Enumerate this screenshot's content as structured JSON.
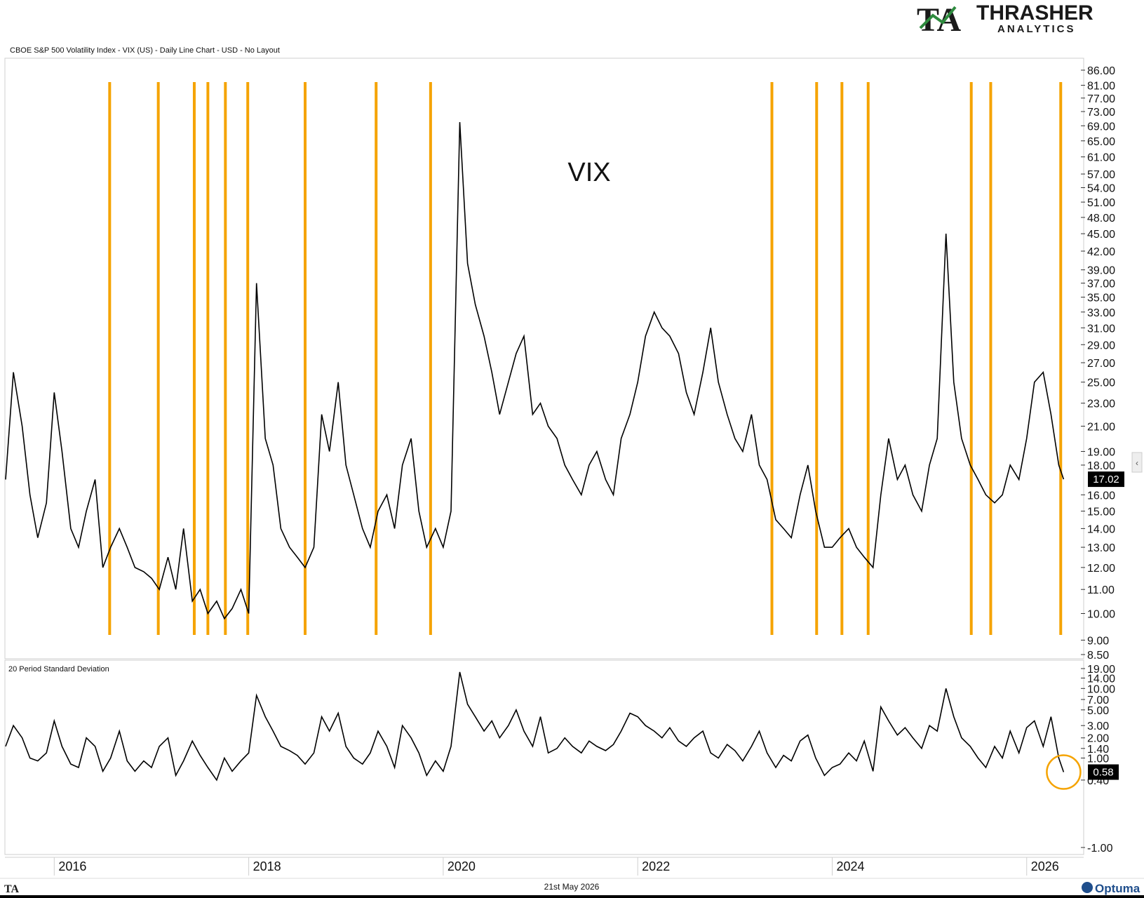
{
  "header": {
    "chart_description": "CBOE S&P 500 Volatility Index - VIX (US) - Daily Line Chart - USD - No Layout",
    "logo_text": "THRASHER",
    "logo_sub": "ANALYTICS",
    "logo_mark": "TA"
  },
  "footer": {
    "date": "21st May 2026",
    "brand": "Optuma",
    "mark": "TA"
  },
  "colors": {
    "line": "#000000",
    "highlight": "#F5A300",
    "logo_green": "#2E8B3E",
    "logo_dark": "#1a1a1a",
    "label_bg": "#000000"
  },
  "chart_data": [
    {
      "type": "line",
      "title": "VIX",
      "scale": "log",
      "series": [
        {
          "x": [
            2015.5,
            2015.58,
            2015.67,
            2015.75,
            2015.83,
            2015.92,
            2016.0,
            2016.08,
            2016.17,
            2016.25,
            2016.33,
            2016.42,
            2016.5,
            2016.58,
            2016.67,
            2016.75,
            2016.83,
            2016.92,
            2017.0,
            2017.08,
            2017.17,
            2017.25,
            2017.33,
            2017.42,
            2017.5,
            2017.58,
            2017.67,
            2017.75,
            2017.83,
            2017.92,
            2018.0,
            2018.08,
            2018.17,
            2018.25,
            2018.33,
            2018.42,
            2018.5,
            2018.58,
            2018.67,
            2018.75,
            2018.83,
            2018.92,
            2019.0,
            2019.08,
            2019.17,
            2019.25,
            2019.33,
            2019.42,
            2019.5,
            2019.58,
            2019.67,
            2019.75,
            2019.83,
            2019.92,
            2020.0,
            2020.08,
            2020.17,
            2020.25,
            2020.33,
            2020.42,
            2020.5,
            2020.58,
            2020.67,
            2020.75,
            2020.83,
            2020.92,
            2021.0,
            2021.08,
            2021.17,
            2021.25,
            2021.33,
            2021.42,
            2021.5,
            2021.58,
            2021.67,
            2021.75,
            2021.83,
            2021.92,
            2022.0,
            2022.08,
            2022.17,
            2022.25,
            2022.33,
            2022.42,
            2022.5,
            2022.58,
            2022.67,
            2022.75,
            2022.83,
            2022.92,
            2023.0,
            2023.08,
            2023.17,
            2023.25,
            2023.33,
            2023.42,
            2023.5,
            2023.58,
            2023.67,
            2023.75,
            2023.83,
            2023.92,
            2024.0,
            2024.08,
            2024.17,
            2024.25,
            2024.33,
            2024.42,
            2024.5,
            2024.58,
            2024.67,
            2024.75,
            2024.83,
            2024.92,
            2025.0,
            2025.08,
            2025.17,
            2025.25,
            2025.33,
            2025.42,
            2025.5,
            2025.58,
            2025.67,
            2025.75,
            2025.83,
            2025.92,
            2026.0,
            2026.08,
            2026.17,
            2026.25,
            2026.33,
            2026.38
          ],
          "y": [
            17,
            26,
            21,
            16,
            13.5,
            15.5,
            24,
            19,
            14,
            13,
            15,
            17,
            12,
            13,
            14,
            13,
            12,
            11.8,
            11.5,
            11,
            12.5,
            11,
            14,
            10.5,
            11,
            10,
            10.5,
            9.8,
            10.2,
            11,
            10,
            37,
            20,
            18,
            14,
            13,
            12.5,
            12,
            13,
            22,
            19,
            25,
            18,
            16,
            14,
            13,
            15,
            16,
            14,
            18,
            20,
            15,
            13,
            14,
            13,
            15,
            70,
            40,
            34,
            30,
            26,
            22,
            25,
            28,
            30,
            22,
            23,
            21,
            20,
            18,
            17,
            16,
            18,
            19,
            17,
            16,
            20,
            22,
            25,
            30,
            33,
            31,
            30,
            28,
            24,
            22,
            26,
            31,
            25,
            22,
            20,
            19,
            22,
            18,
            17,
            14.5,
            14,
            13.5,
            16,
            18,
            15,
            13,
            13,
            13.5,
            14,
            13,
            12.5,
            12,
            16,
            20,
            17,
            18,
            16,
            15,
            18,
            20,
            45,
            25,
            20,
            18,
            17,
            16,
            15.5,
            16,
            18,
            17,
            20,
            25,
            26,
            22,
            18,
            17.02
          ]
        }
      ],
      "highlight_x": [
        2016.57,
        2017.07,
        2017.44,
        2017.58,
        2017.76,
        2017.99,
        2018.58,
        2019.31,
        2019.87,
        2023.38,
        2023.84,
        2024.1,
        2024.37,
        2025.43,
        2025.63,
        2026.35
      ],
      "y_ticks": [
        86.0,
        81.0,
        77.0,
        73.0,
        69.0,
        65.0,
        61.0,
        57.0,
        54.0,
        51.0,
        48.0,
        45.0,
        42.0,
        39.0,
        37.0,
        35.0,
        33.0,
        31.0,
        29.0,
        27.0,
        25.0,
        23.0,
        21.0,
        19.0,
        18.0,
        16.0,
        15.0,
        14.0,
        13.0,
        12.0,
        11.0,
        10.0,
        9.0,
        8.5
      ],
      "y_tick_labels": [
        "86.00",
        "81.00",
        "77.00",
        "73.00",
        "69.00",
        "65.00",
        "61.00",
        "57.00",
        "54.00",
        "51.00",
        "48.00",
        "45.00",
        "42.00",
        "39.00",
        "37.00",
        "35.00",
        "33.00",
        "31.00",
        "29.00",
        "27.00",
        "25.00",
        "23.00",
        "21.00",
        "19.00",
        "18.00",
        "16.00",
        "15.00",
        "14.00",
        "13.00",
        "12.00",
        "11.00",
        "10.00",
        "9.00",
        "8.50"
      ],
      "last_value": "17.02",
      "ylim": [
        8.5,
        86
      ],
      "xlim": [
        2015.5,
        2026.55
      ]
    },
    {
      "type": "line",
      "title": "20 Period Standard Deviation",
      "series": [
        {
          "x": [
            2015.5,
            2015.58,
            2015.67,
            2015.75,
            2015.83,
            2015.92,
            2016.0,
            2016.08,
            2016.17,
            2016.25,
            2016.33,
            2016.42,
            2016.5,
            2016.58,
            2016.67,
            2016.75,
            2016.83,
            2016.92,
            2017.0,
            2017.08,
            2017.17,
            2017.25,
            2017.33,
            2017.42,
            2017.5,
            2017.58,
            2017.67,
            2017.75,
            2017.83,
            2017.92,
            2018.0,
            2018.08,
            2018.17,
            2018.25,
            2018.33,
            2018.42,
            2018.5,
            2018.58,
            2018.67,
            2018.75,
            2018.83,
            2018.92,
            2019.0,
            2019.08,
            2019.17,
            2019.25,
            2019.33,
            2019.42,
            2019.5,
            2019.58,
            2019.67,
            2019.75,
            2019.83,
            2019.92,
            2020.0,
            2020.08,
            2020.17,
            2020.25,
            2020.33,
            2020.42,
            2020.5,
            2020.58,
            2020.67,
            2020.75,
            2020.83,
            2020.92,
            2021.0,
            2021.08,
            2021.17,
            2021.25,
            2021.33,
            2021.42,
            2021.5,
            2021.58,
            2021.67,
            2021.75,
            2021.83,
            2021.92,
            2022.0,
            2022.08,
            2022.17,
            2022.25,
            2022.33,
            2022.42,
            2022.5,
            2022.58,
            2022.67,
            2022.75,
            2022.83,
            2022.92,
            2023.0,
            2023.08,
            2023.17,
            2023.25,
            2023.33,
            2023.42,
            2023.5,
            2023.58,
            2023.67,
            2023.75,
            2023.83,
            2023.92,
            2024.0,
            2024.08,
            2024.17,
            2024.25,
            2024.33,
            2024.42,
            2024.5,
            2024.58,
            2024.67,
            2024.75,
            2024.83,
            2024.92,
            2025.0,
            2025.08,
            2025.17,
            2025.25,
            2025.33,
            2025.42,
            2025.5,
            2025.58,
            2025.67,
            2025.75,
            2025.83,
            2025.92,
            2026.0,
            2026.08,
            2026.17,
            2026.25,
            2026.33,
            2026.38
          ],
          "y": [
            1.5,
            3.0,
            2.0,
            1.0,
            0.9,
            1.2,
            3.5,
            1.5,
            0.8,
            0.7,
            2.0,
            1.5,
            0.6,
            1.0,
            2.5,
            0.9,
            0.6,
            0.9,
            0.7,
            1.5,
            2.0,
            0.5,
            0.9,
            1.8,
            1.1,
            0.7,
            0.4,
            1.0,
            0.6,
            0.9,
            1.2,
            8.0,
            4.0,
            2.5,
            1.5,
            1.3,
            1.1,
            0.8,
            1.2,
            4.0,
            2.5,
            4.5,
            1.5,
            1.0,
            0.8,
            1.2,
            2.5,
            1.5,
            0.7,
            3.0,
            2.0,
            1.2,
            0.5,
            0.9,
            0.6,
            1.5,
            17.0,
            6.0,
            4.0,
            2.5,
            3.5,
            2.0,
            3.0,
            5.0,
            2.5,
            1.5,
            4.0,
            1.2,
            1.4,
            2.0,
            1.5,
            1.2,
            1.8,
            1.5,
            1.3,
            1.6,
            2.5,
            4.5,
            4.0,
            3.0,
            2.5,
            2.0,
            2.8,
            1.8,
            1.5,
            2.0,
            2.5,
            1.2,
            1.0,
            1.6,
            1.3,
            0.9,
            1.5,
            2.5,
            1.2,
            0.7,
            1.1,
            0.9,
            1.8,
            2.2,
            1.0,
            0.5,
            0.7,
            0.8,
            1.2,
            0.9,
            1.8,
            0.6,
            5.5,
            3.5,
            2.2,
            2.8,
            2.0,
            1.4,
            3.0,
            2.5,
            10.0,
            4.0,
            2.0,
            1.5,
            1.0,
            0.7,
            1.5,
            1.0,
            2.5,
            1.2,
            2.8,
            3.5,
            1.5,
            4.0,
            1.0,
            0.58
          ]
        }
      ],
      "y_ticks": [
        19.0,
        14.0,
        10.0,
        7.0,
        5.0,
        3.0,
        2.0,
        1.4,
        1.0,
        0.4,
        -1.0
      ],
      "y_tick_labels": [
        "19.00",
        "14.00",
        "10.00",
        "7.00",
        "5.00",
        "3.00",
        "2.00",
        "1.40",
        "1.00",
        "0.40",
        "-1.00"
      ],
      "last_value": "0.58",
      "annotation": "circle-last-value",
      "xlim": [
        2015.5,
        2026.55
      ]
    }
  ],
  "x_axis": {
    "ticks": [
      2016,
      2018,
      2020,
      2022,
      2024,
      2026
    ],
    "tick_labels": [
      "2016",
      "2018",
      "2020",
      "2022",
      "2024",
      "2026"
    ]
  }
}
